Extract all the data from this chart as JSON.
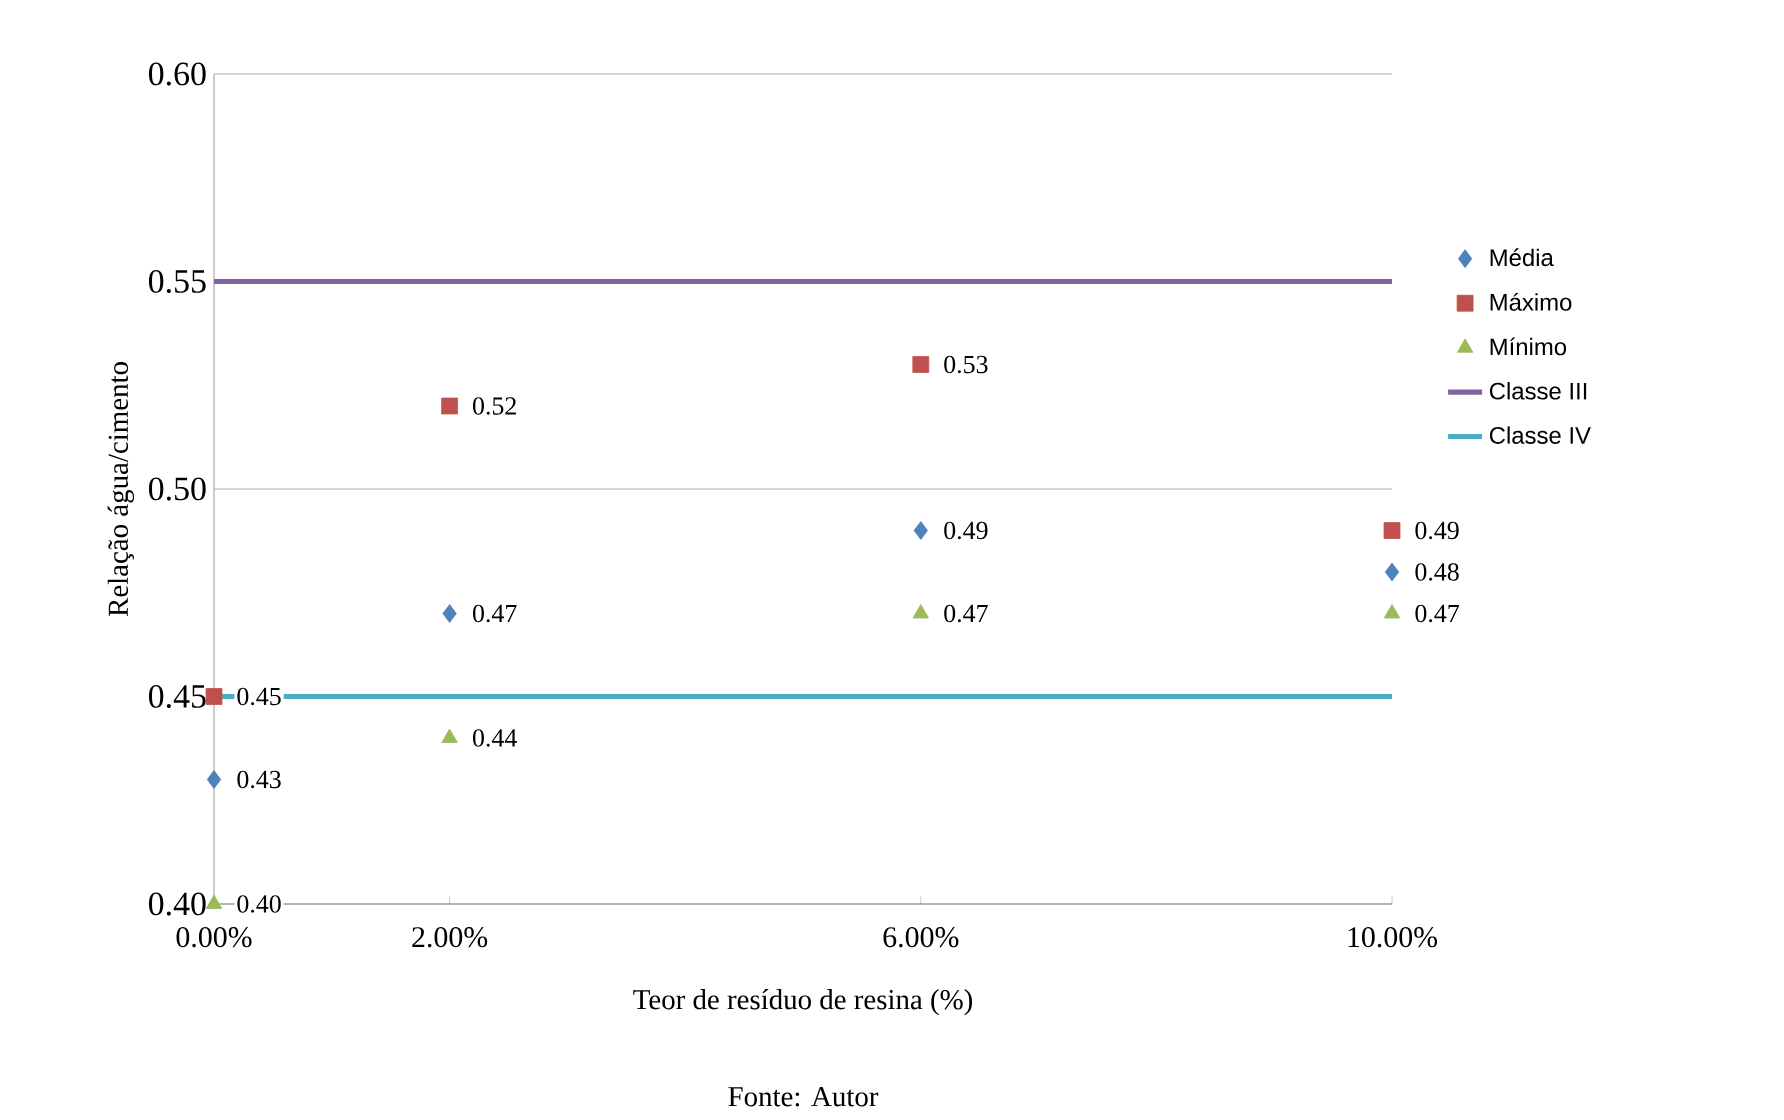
{
  "chart_data": {
    "type": "scatter",
    "xlabel": "Teor de resíduo de resina (%)",
    "ylabel": "Relação água/cimento",
    "x": [
      0,
      2,
      6,
      10
    ],
    "xlim": [
      0,
      10
    ],
    "xticks": [
      {
        "value": 0,
        "label": "0.00%"
      },
      {
        "value": 2,
        "label": "2.00%"
      },
      {
        "value": 6,
        "label": "6.00%"
      },
      {
        "value": 10,
        "label": "10.00%"
      }
    ],
    "ylim": [
      0.4,
      0.6
    ],
    "yticks": [
      {
        "value": 0.4,
        "label": "0.40"
      },
      {
        "value": 0.45,
        "label": "0.45"
      },
      {
        "value": 0.5,
        "label": "0.50"
      },
      {
        "value": 0.55,
        "label": "0.55"
      },
      {
        "value": 0.6,
        "label": "0.60"
      }
    ],
    "grid": "y",
    "legend": "right",
    "series": [
      {
        "name": "Média",
        "color": "#4f81bd",
        "marker": "diamond",
        "values": [
          0.43,
          0.47,
          0.49,
          0.48
        ],
        "value_labels": [
          "0.43",
          "0.47",
          "0.49",
          "0.48"
        ]
      },
      {
        "name": "Máximo",
        "color": "#c0504d",
        "marker": "square",
        "values": [
          0.45,
          0.52,
          0.53,
          0.49
        ],
        "value_labels": [
          "0.45",
          "0.52",
          "0.53",
          "0.49"
        ]
      },
      {
        "name": "Mínimo",
        "color": "#9bbb59",
        "marker": "triangle",
        "values": [
          0.4,
          0.44,
          0.47,
          0.47
        ],
        "value_labels": [
          "0.40",
          "0.44",
          "0.47",
          "0.47"
        ]
      }
    ],
    "ref_lines": [
      {
        "axis": "y",
        "value": 0.55,
        "label": "Classe III",
        "color": "#8064a2"
      },
      {
        "axis": "y",
        "value": 0.45,
        "label": "Classe IV",
        "color": "#4bacc6"
      }
    ],
    "annotations": [
      "Fonte: Autor"
    ]
  }
}
